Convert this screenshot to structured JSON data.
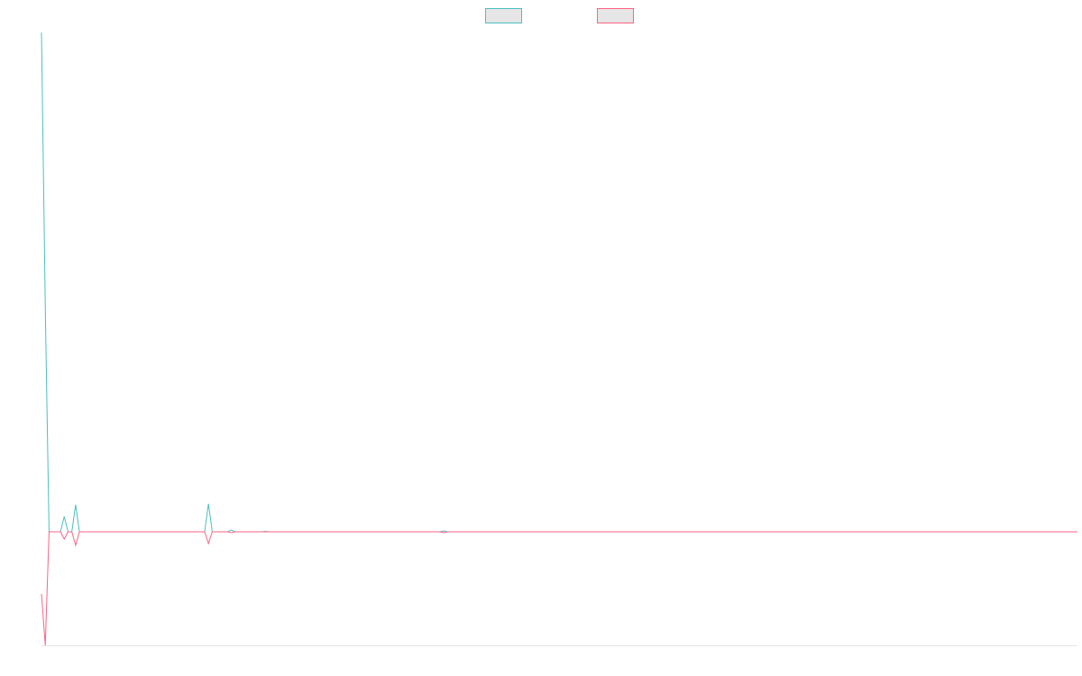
{
  "chart_data": {
    "type": "line",
    "x": [
      0,
      1,
      2,
      5,
      6,
      7,
      8,
      9,
      10,
      43,
      44,
      45,
      49,
      50,
      51,
      58,
      59,
      60,
      105,
      106,
      107,
      273
    ],
    "xlim": [
      0,
      273
    ],
    "ylim": [
      -126,
      554
    ],
    "legend": "top",
    "series": [
      {
        "color": "#4bc0c0",
        "values": [
          554,
          250,
          0,
          0,
          17,
          0,
          0,
          30,
          0,
          0,
          31,
          0,
          0,
          2,
          0,
          0,
          0.5,
          0,
          0,
          1,
          0,
          0
        ]
      },
      {
        "color": "#ff6384",
        "values": [
          -69,
          -126,
          0,
          0,
          -8,
          0,
          0,
          -15,
          0,
          0,
          -13,
          0,
          0,
          -1,
          0,
          0,
          0,
          0,
          0,
          -1,
          0,
          0
        ]
      }
    ]
  }
}
